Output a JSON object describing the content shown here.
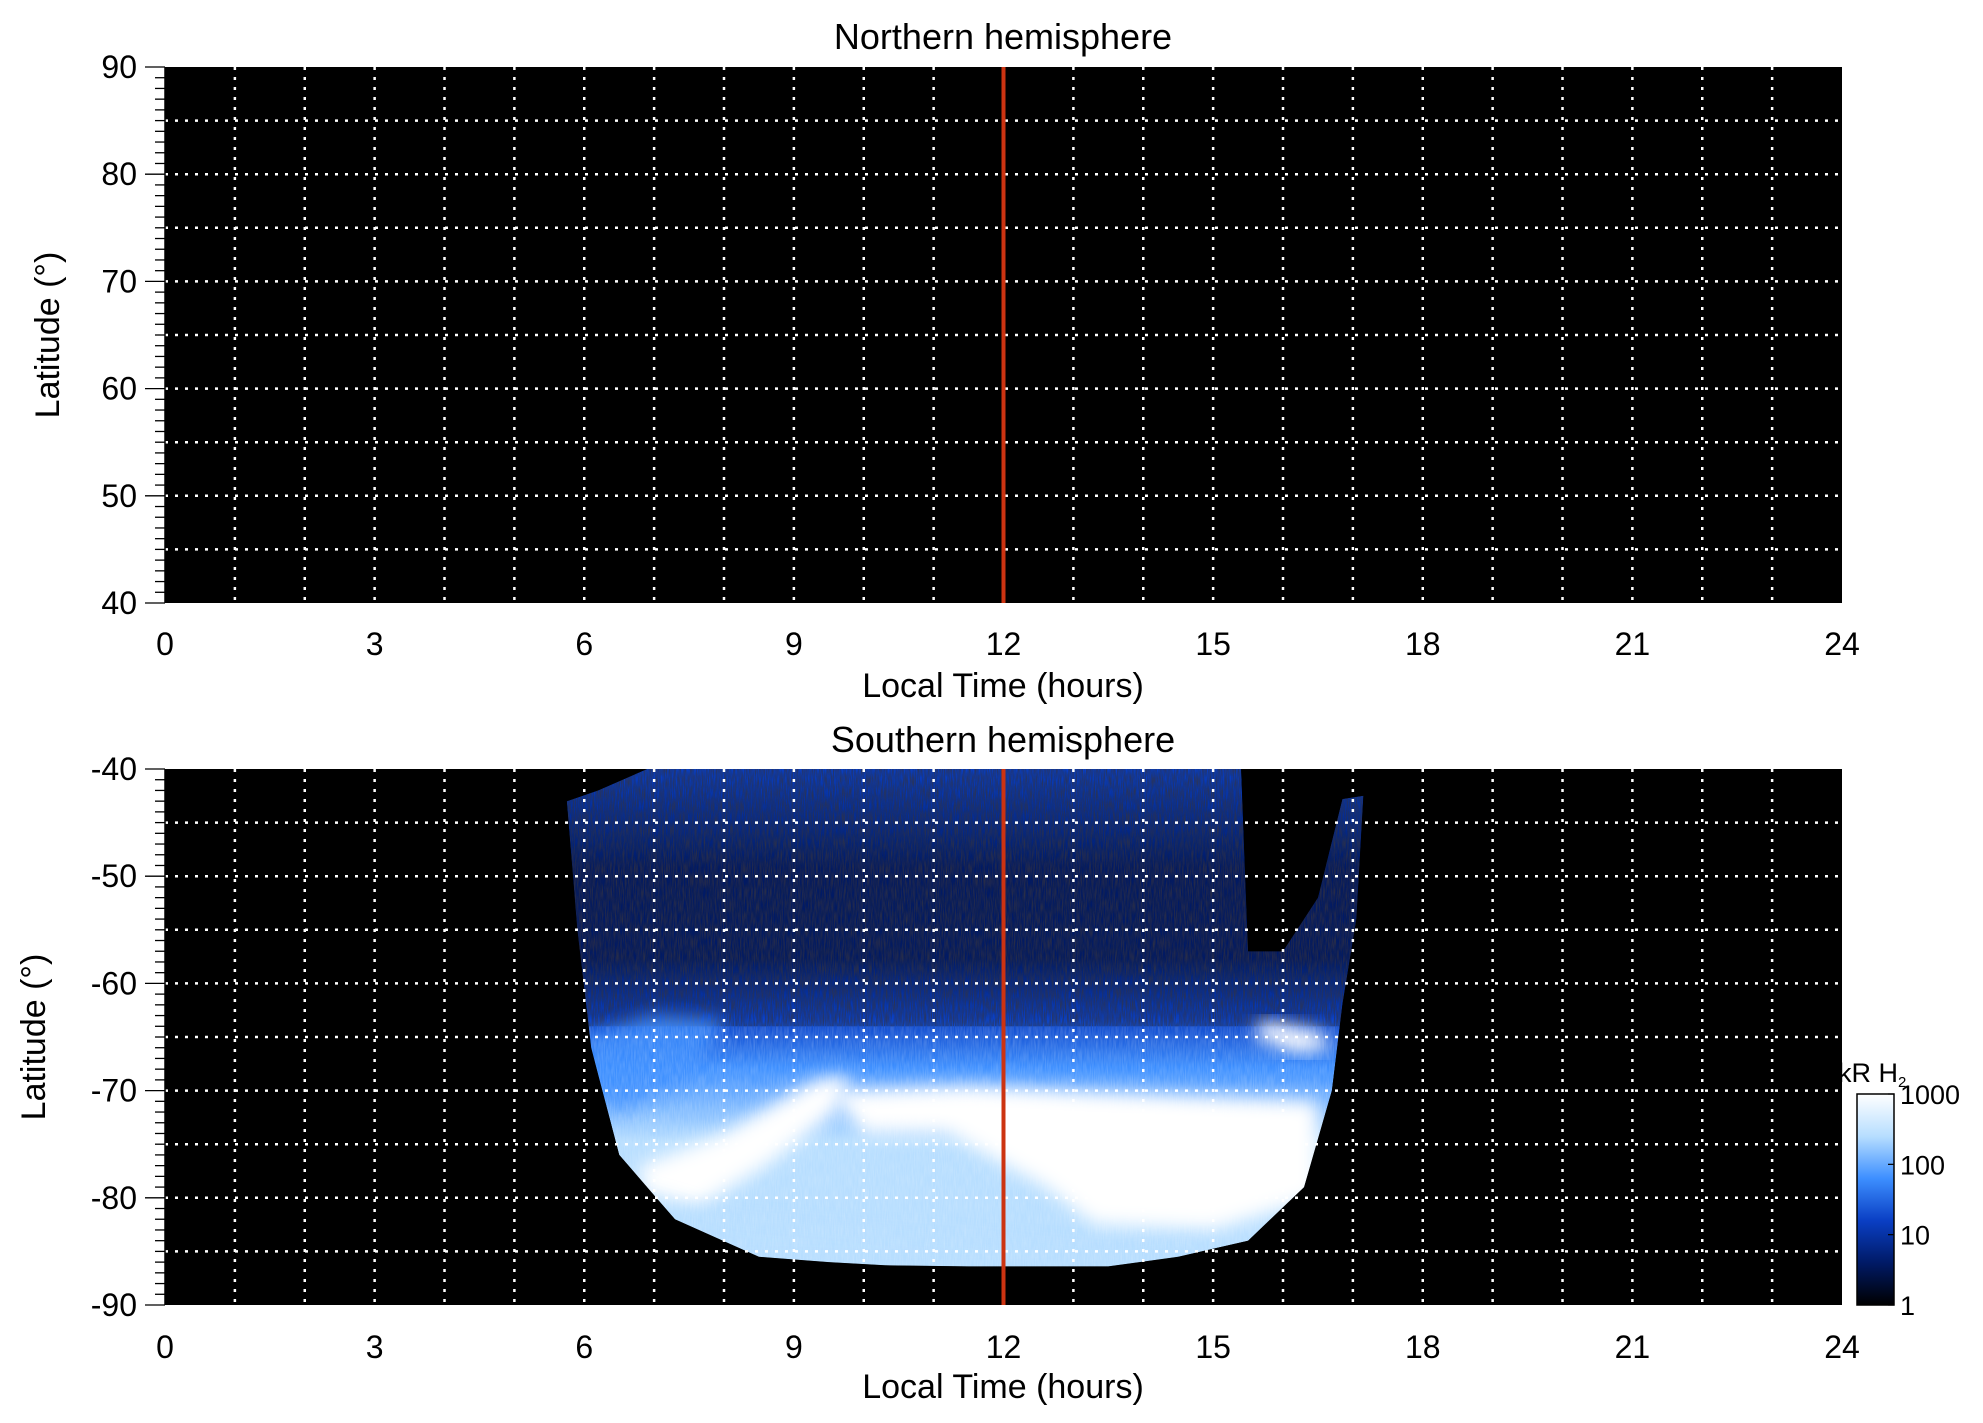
{
  "colors": {
    "background": "#000000",
    "grid": "#ffffff",
    "noon_line": "#cc3311",
    "colormap": [
      "#000000",
      "#001a66",
      "#0a3fc4",
      "#3d8fff",
      "#b7deff",
      "#ffffff"
    ]
  },
  "chart_data": [
    {
      "type": "heatmap",
      "title": "Northern hemisphere",
      "xlabel": "Local Time (hours)",
      "ylabel": "Latitude (°)",
      "xlim": [
        0,
        24
      ],
      "ylim": [
        40,
        90
      ],
      "x_ticks": [
        0,
        3,
        6,
        9,
        12,
        15,
        18,
        21,
        24
      ],
      "y_ticks": [
        40,
        50,
        60,
        70,
        80,
        90
      ],
      "x_gridlines": [
        1,
        2,
        3,
        4,
        5,
        6,
        7,
        8,
        9,
        10,
        11,
        12,
        13,
        14,
        15,
        16,
        17,
        18,
        19,
        20,
        21,
        22,
        23
      ],
      "y_gridlines": [
        45,
        50,
        55,
        60,
        65,
        70,
        75,
        80,
        85
      ],
      "grid": true,
      "noon_line_x": 12,
      "emission": "none observed (all black)"
    },
    {
      "type": "heatmap",
      "title": "Southern hemisphere",
      "xlabel": "Local Time (hours)",
      "ylabel": "Latitude (°)",
      "xlim": [
        0,
        24
      ],
      "ylim": [
        -90,
        -40
      ],
      "x_ticks": [
        0,
        3,
        6,
        9,
        12,
        15,
        18,
        21,
        24
      ],
      "y_ticks": [
        -40,
        -50,
        -60,
        -70,
        -80,
        -90
      ],
      "x_gridlines": [
        1,
        2,
        3,
        4,
        5,
        6,
        7,
        8,
        9,
        10,
        11,
        12,
        13,
        14,
        15,
        16,
        17,
        18,
        19,
        20,
        21,
        22,
        23
      ],
      "y_gridlines": [
        -45,
        -50,
        -55,
        -60,
        -65,
        -70,
        -75,
        -80,
        -85
      ],
      "grid": true,
      "noon_line_x": 12,
      "coverage": {
        "lt_range": [
          5.7,
          17.2
        ],
        "boundary": [
          {
            "lt": 5.75,
            "lat": -43
          },
          {
            "lt": 5.9,
            "lat": -55
          },
          {
            "lt": 6.1,
            "lat": -66
          },
          {
            "lt": 6.5,
            "lat": -76
          },
          {
            "lt": 7.3,
            "lat": -82
          },
          {
            "lt": 8.5,
            "lat": -85.5
          },
          {
            "lt": 9.5,
            "lat": -86
          },
          {
            "lt": 10.3,
            "lat": -86.3
          },
          {
            "lt": 11.5,
            "lat": -86.4
          },
          {
            "lt": 13.5,
            "lat": -86.4
          },
          {
            "lt": 14.5,
            "lat": -85.5
          },
          {
            "lt": 15.5,
            "lat": -84
          },
          {
            "lt": 16.3,
            "lat": -79
          },
          {
            "lt": 16.7,
            "lat": -70
          },
          {
            "lt": 16.85,
            "lat": -62
          },
          {
            "lt": 17.05,
            "lat": -54
          },
          {
            "lt": 17.15,
            "lat": -42.5
          },
          {
            "lt": 16.85,
            "lat": -42.8
          },
          {
            "lt": 16.5,
            "lat": -52
          },
          {
            "lt": 16.0,
            "lat": -57
          },
          {
            "lt": 15.5,
            "lat": -57
          },
          {
            "lt": 15.4,
            "lat": -40
          },
          {
            "lt": 6.9,
            "lat": -40
          },
          {
            "lt": 6.2,
            "lat": -42
          },
          {
            "lt": 5.75,
            "lat": -43
          }
        ]
      },
      "colorbar": {
        "label_main": "kR H",
        "label_sub": "2",
        "scale": "log",
        "range": [
          1,
          1000
        ],
        "ticks": [
          "1",
          "10",
          "100",
          "1000"
        ]
      }
    }
  ]
}
